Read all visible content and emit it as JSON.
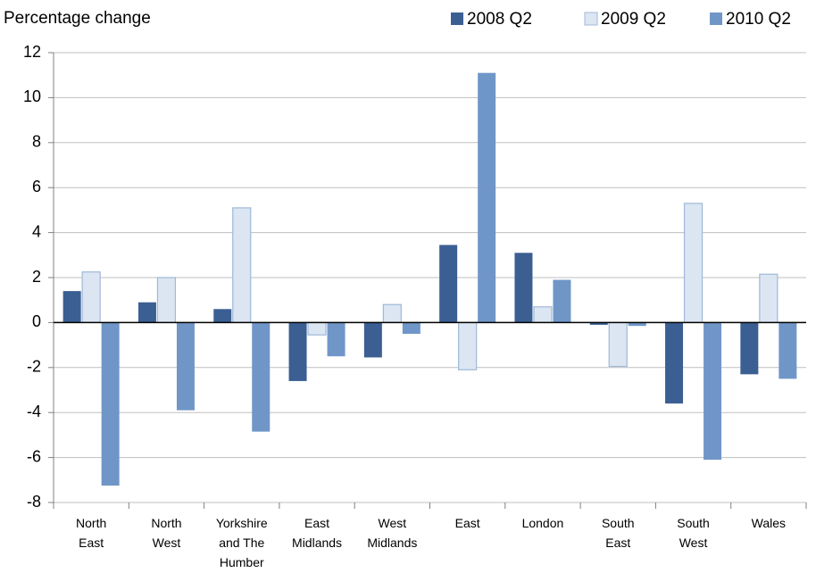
{
  "chart_data": {
    "type": "bar",
    "title": "Percentage change",
    "categories": [
      "North East",
      "North West",
      "Yorkshire and The Humber",
      "East Midlands",
      "West Midlands",
      "East",
      "London",
      "South East",
      "South West",
      "Wales"
    ],
    "series": [
      {
        "name": "2008 Q2",
        "color": "#3b5f93",
        "values": [
          1.4,
          0.9,
          0.6,
          -2.6,
          -1.55,
          3.45,
          3.1,
          -0.1,
          -3.6,
          -2.3
        ]
      },
      {
        "name": "2009 Q2",
        "color": "#dce6f2",
        "edgecolor": "#9fb8d8",
        "values": [
          2.25,
          2.0,
          5.1,
          -0.55,
          0.8,
          -2.1,
          0.7,
          -1.95,
          5.3,
          2.15
        ]
      },
      {
        "name": "2010 Q2",
        "color": "#7096c8",
        "values": [
          -7.25,
          -3.9,
          -4.85,
          -1.5,
          -0.5,
          11.1,
          1.9,
          -0.15,
          -6.1,
          -2.5
        ]
      }
    ],
    "ylim": [
      -8,
      12
    ],
    "yticks": [
      -8,
      -6,
      -4,
      -2,
      0,
      2,
      4,
      6,
      8,
      10,
      12
    ],
    "grid": true,
    "legend": "top-right"
  }
}
